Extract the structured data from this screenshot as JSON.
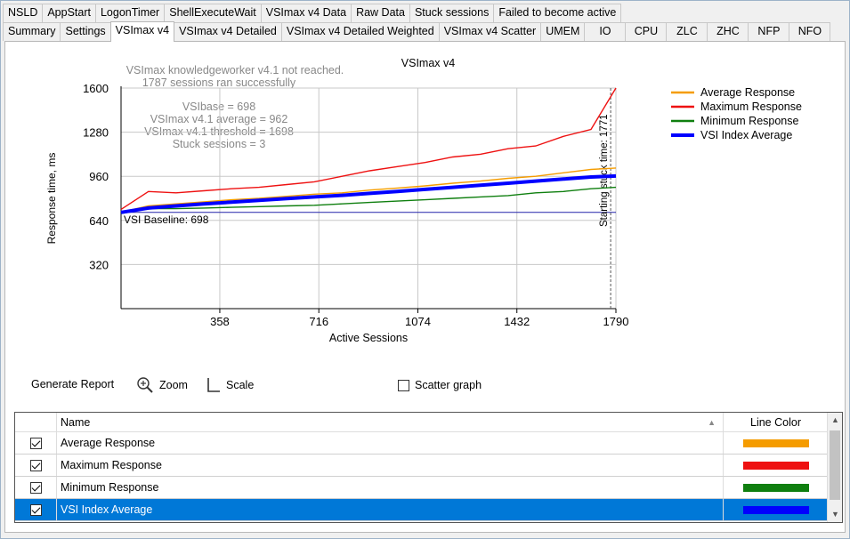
{
  "tabs_row1": [
    "NSLD",
    "AppStart",
    "LogonTimer",
    "ShellExecuteWait",
    "VSImax v4 Data",
    "Raw Data",
    "Stuck sessions",
    "Failed to become active"
  ],
  "tabs_row2": [
    "Summary",
    "Settings",
    "VSImax v4",
    "VSImax v4 Detailed",
    "VSImax v4 Detailed Weighted",
    "VSImax v4 Scatter",
    "UMEM",
    "IO",
    "CPU",
    "ZLC",
    "ZHC",
    "NFP",
    "NFO"
  ],
  "active_tab": "VSImax v4",
  "info": {
    "line1": "VSImax knowledgeworker v4.1 not reached.",
    "line2": "1787 sessions ran successfully",
    "line3": "VSIbase = 698",
    "line4": "VSImax v4.1 average = 962",
    "line5": "VSImax v4.1 threshold = 1698",
    "line6": "Stuck sessions = 3"
  },
  "toolbar": {
    "generate_report": "Generate Report",
    "zoom": "Zoom",
    "scale": "Scale",
    "scatter_graph": "Scatter graph"
  },
  "grid": {
    "col_name": "Name",
    "col_color": "Line Color",
    "rows": [
      {
        "name": "Average Response",
        "color": "#f59c00",
        "checked": true
      },
      {
        "name": "Maximum Response",
        "color": "#ee1111",
        "checked": true
      },
      {
        "name": "Minimum Response",
        "color": "#0f7f0f",
        "checked": true
      },
      {
        "name": "VSI Index Average",
        "color": "#0000ff",
        "checked": true
      }
    ]
  },
  "chart_data": {
    "type": "line",
    "title": "VSImax v4",
    "xlabel": "Active Sessions",
    "ylabel": "Response time, ms",
    "xlim": [
      1,
      1790
    ],
    "ylim": [
      0,
      1600
    ],
    "xticks": [
      358,
      716,
      1074,
      1432,
      1790
    ],
    "yticks": [
      320,
      640,
      960,
      1280,
      1600
    ],
    "baseline": {
      "label": "VSI Baseline: 698",
      "value": 698
    },
    "threshold_marker": {
      "label": "Starting stuck time: 1771",
      "x": 1771
    },
    "legend_position": "top-right",
    "series": [
      {
        "name": "Average Response",
        "color": "#f59c00",
        "x": [
          1,
          100,
          200,
          300,
          400,
          500,
          600,
          700,
          800,
          900,
          1000,
          1100,
          1200,
          1300,
          1400,
          1500,
          1600,
          1700,
          1790
        ],
        "values": [
          700,
          745,
          760,
          775,
          790,
          800,
          815,
          830,
          840,
          860,
          875,
          890,
          910,
          925,
          945,
          960,
          985,
          1010,
          1020
        ]
      },
      {
        "name": "Maximum Response",
        "color": "#ee1111",
        "x": [
          1,
          100,
          200,
          300,
          400,
          500,
          600,
          700,
          800,
          900,
          1000,
          1100,
          1200,
          1300,
          1400,
          1500,
          1600,
          1700,
          1790
        ],
        "values": [
          720,
          850,
          840,
          855,
          870,
          880,
          900,
          920,
          960,
          1000,
          1030,
          1060,
          1100,
          1120,
          1160,
          1180,
          1250,
          1300,
          1600
        ]
      },
      {
        "name": "Minimum Response",
        "color": "#0f7f0f",
        "x": [
          1,
          100,
          200,
          300,
          400,
          500,
          600,
          700,
          800,
          900,
          1000,
          1100,
          1200,
          1300,
          1400,
          1500,
          1600,
          1700,
          1790
        ],
        "values": [
          690,
          725,
          725,
          730,
          735,
          740,
          745,
          750,
          760,
          770,
          780,
          790,
          800,
          810,
          820,
          840,
          850,
          870,
          880
        ]
      },
      {
        "name": "VSI Index Average",
        "color": "#0000ff",
        "x": [
          1,
          100,
          200,
          300,
          400,
          500,
          600,
          700,
          800,
          900,
          1000,
          1100,
          1200,
          1300,
          1400,
          1500,
          1600,
          1700,
          1790
        ],
        "values": [
          698,
          730,
          745,
          760,
          772,
          785,
          798,
          810,
          822,
          836,
          850,
          865,
          880,
          895,
          910,
          925,
          940,
          955,
          962
        ]
      }
    ]
  }
}
